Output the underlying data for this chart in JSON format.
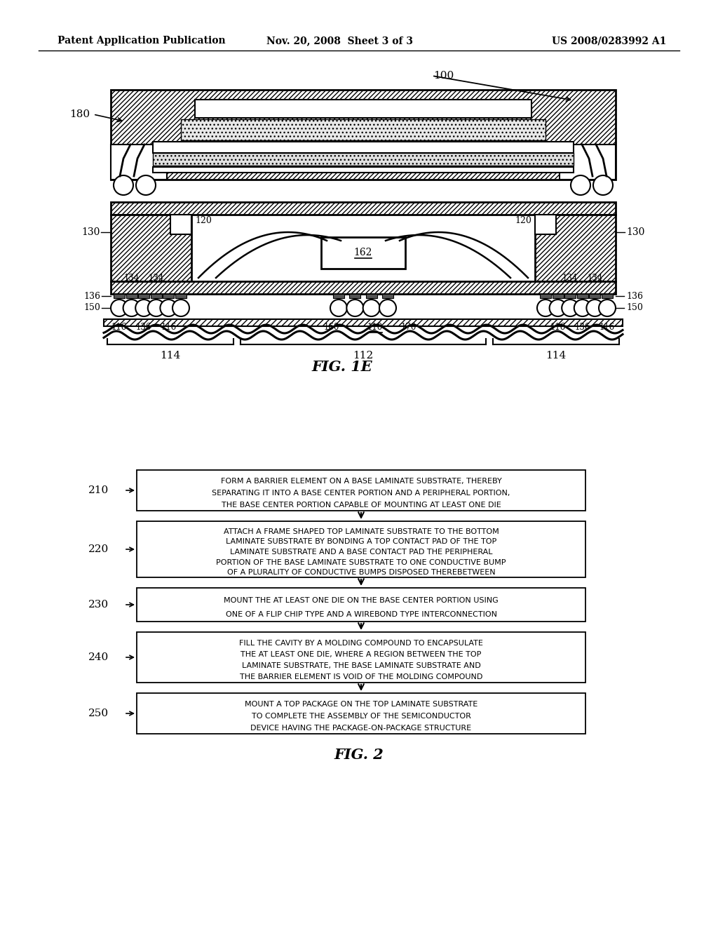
{
  "header_left": "Patent Application Publication",
  "header_center": "Nov. 20, 2008  Sheet 3 of 3",
  "header_right": "US 2008/0283992 A1",
  "fig1e_label": "FIG. 1E",
  "fig2_label": "FIG. 2",
  "flow_steps": [
    {
      "id": "210",
      "text": "FORM A BARRIER ELEMENT ON A BASE LAMINATE SUBSTRATE, THEREBY\nSEPARATING IT INTO A BASE CENTER PORTION AND A PERIPHERAL PORTION,\nTHE BASE CENTER PORTION CAPABLE OF MOUNTING AT LEAST ONE DIE"
    },
    {
      "id": "220",
      "text": "ATTACH A FRAME SHAPED TOP LAMINATE SUBSTRATE TO THE BOTTOM\nLAMINATE SUBSTRATE BY BONDING A TOP CONTACT PAD OF THE TOP\nLAMINATE SUBSTRATE AND A BASE CONTACT PAD THE PERIPHERAL\nPORTION OF THE BASE LAMINATE SUBSTRATE TO ONE CONDUCTIVE BUMP\nOF A PLURALITY OF CONDUCTIVE BUMPS DISPOSED THEREBETWEEN"
    },
    {
      "id": "230",
      "text": "MOUNT THE AT LEAST ONE DIE ON THE BASE CENTER PORTION USING\nONE OF A FLIP CHIP TYPE AND A WIREBOND TYPE INTERCONNECTION"
    },
    {
      "id": "240",
      "text": "FILL THE CAVITY BY A MOLDING COMPOUND TO ENCAPSULATE\nTHE AT LEAST ONE DIE, WHERE A REGION BETWEEN THE TOP\nLAMINATE SUBSTRATE, THE BASE LAMINATE SUBSTRATE AND\nTHE BARRIER ELEMENT IS VOID OF THE MOLDING COMPOUND"
    },
    {
      "id": "250",
      "text": "MOUNT A TOP PACKAGE ON THE TOP LAMINATE SUBSTRATE\nTO COMPLETE THE ASSEMBLY OF THE SEMICONDUCTOR\nDEVICE HAVING THE PACKAGE-ON-PACKAGE STRUCTURE"
    }
  ],
  "bg_color": "#ffffff"
}
